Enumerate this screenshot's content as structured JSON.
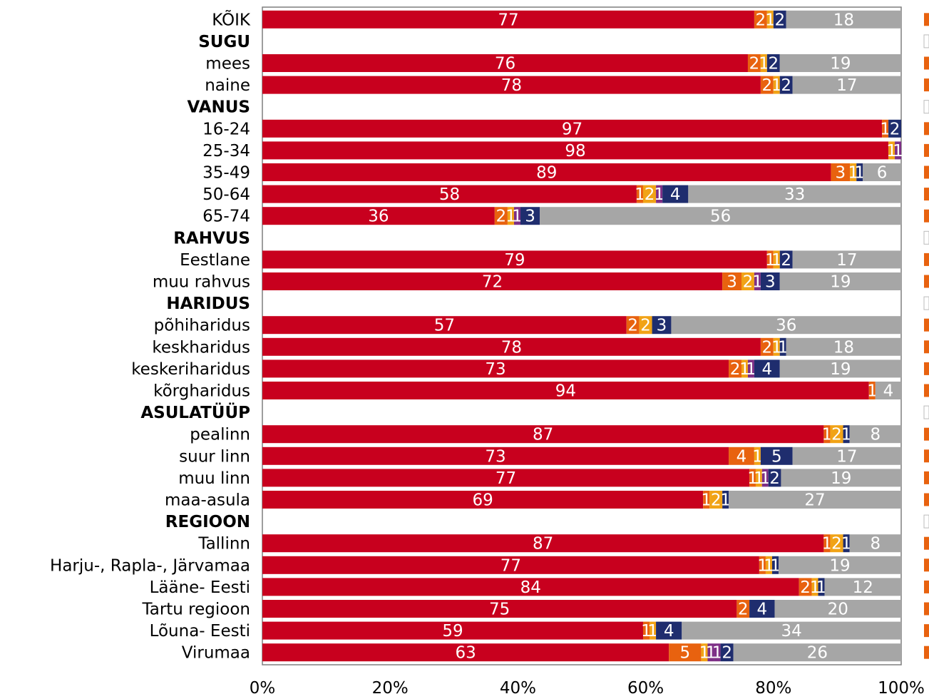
{
  "chart_data": {
    "type": "bar",
    "orientation": "horizontal",
    "stacked": "percent",
    "x_ticks": [
      "0%",
      "20%",
      "40%",
      "60%",
      "80%",
      "100%"
    ],
    "xlim": [
      0,
      100
    ],
    "grid": false,
    "colors": [
      "#c8001e",
      "#e8620f",
      "#f1a316",
      "#7d2f86",
      "#1f2d6e",
      "#a6a6a6"
    ],
    "rows": [
      {
        "label": "KÕIK",
        "values": [
          77,
          2,
          1,
          0,
          2,
          18
        ]
      },
      {
        "label": "SUGU",
        "header": true
      },
      {
        "label": "mees",
        "values": [
          76,
          2,
          1,
          0,
          2,
          19
        ]
      },
      {
        "label": "naine",
        "values": [
          78,
          2,
          1,
          0,
          2,
          17
        ]
      },
      {
        "label": "VANUS",
        "header": true
      },
      {
        "label": "16-24",
        "values": [
          97,
          1,
          0,
          0,
          2,
          0
        ]
      },
      {
        "label": "25-34",
        "values": [
          98,
          0,
          1,
          1,
          0,
          0
        ]
      },
      {
        "label": "35-49",
        "values": [
          89,
          3,
          1,
          0,
          1,
          6
        ]
      },
      {
        "label": "50-64",
        "values": [
          58,
          1,
          2,
          1,
          4,
          33
        ],
        "extra": 1
      },
      {
        "label": "65-74",
        "values": [
          36,
          2,
          1,
          1,
          3,
          56
        ]
      },
      {
        "label": "RAHVUS",
        "header": true
      },
      {
        "label": "Eestlane",
        "values": [
          79,
          1,
          1,
          0,
          2,
          17
        ]
      },
      {
        "label": "muu rahvus",
        "values": [
          72,
          3,
          2,
          1,
          3,
          19
        ]
      },
      {
        "label": "HARIDUS",
        "header": true
      },
      {
        "label": "põhiharidus",
        "values": [
          57,
          2,
          2,
          0,
          3,
          36
        ]
      },
      {
        "label": "keskharidus",
        "values": [
          78,
          2,
          1,
          0,
          1,
          18
        ]
      },
      {
        "label": "keskeriharidus",
        "values": [
          73,
          2,
          1,
          1,
          4,
          19
        ]
      },
      {
        "label": "kõrgharidus",
        "values": [
          94,
          1,
          0,
          0,
          0,
          4
        ]
      },
      {
        "label": "ASULATÜÜP",
        "header": true
      },
      {
        "label": "pealinn",
        "values": [
          87,
          1,
          2,
          0,
          1,
          8
        ]
      },
      {
        "label": "suur linn",
        "values": [
          73,
          4,
          1,
          0,
          5,
          17
        ]
      },
      {
        "label": "muu linn",
        "values": [
          77,
          1,
          1,
          1,
          2,
          19
        ]
      },
      {
        "label": "maa-asula",
        "values": [
          69,
          1,
          2,
          0,
          1,
          27
        ]
      },
      {
        "label": "REGIOON",
        "header": true
      },
      {
        "label": "Tallinn",
        "values": [
          87,
          1,
          2,
          0,
          1,
          8
        ]
      },
      {
        "label": "Harju-, Rapla-, Järvamaa",
        "values": [
          77,
          1,
          1,
          0,
          1,
          19
        ]
      },
      {
        "label": "Lääne- Eesti",
        "values": [
          84,
          2,
          1,
          0,
          1,
          12
        ]
      },
      {
        "label": "Tartu regioon",
        "values": [
          75,
          2,
          0,
          0,
          4,
          20
        ]
      },
      {
        "label": "Lõuna- Eesti",
        "values": [
          59,
          1,
          1,
          0,
          4,
          34
        ]
      },
      {
        "label": "Virumaa",
        "values": [
          63,
          5,
          1,
          1,
          1,
          2,
          26
        ],
        "seven": true
      }
    ]
  }
}
